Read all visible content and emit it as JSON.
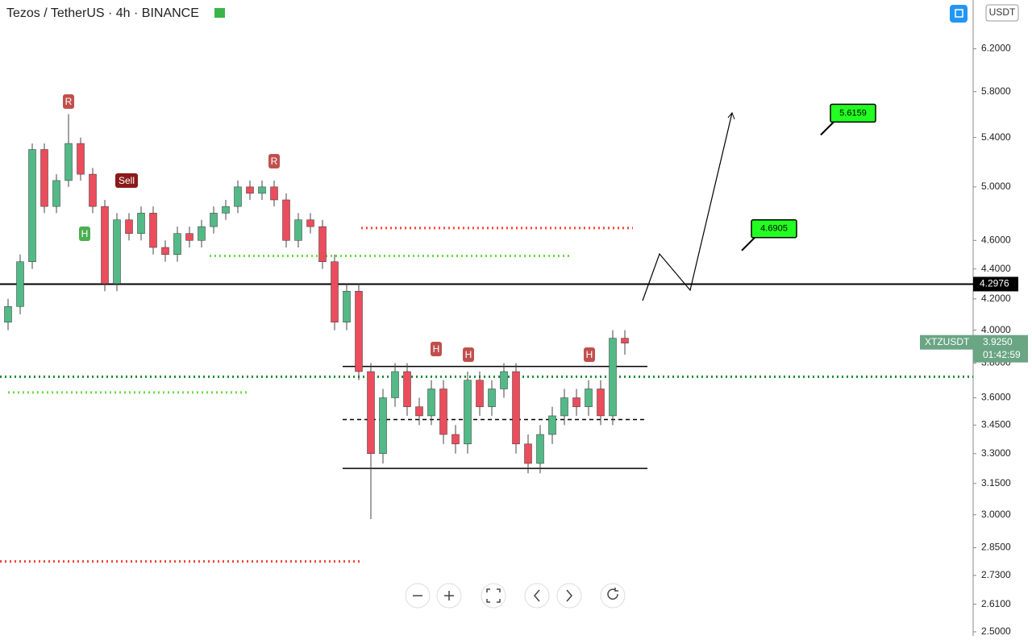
{
  "header": {
    "symbol": "Tezos / TetherUS · 4h · BINANCE",
    "currency": "USDT"
  },
  "chart_data": {
    "type": "candlestick",
    "log_scale": true,
    "ylim": [
      2.484,
      6.69
    ],
    "yticks": [
      {
        "value": 6.2,
        "label": "6.2000"
      },
      {
        "value": 5.8,
        "label": "5.8000"
      },
      {
        "value": 5.4,
        "label": "5.4000"
      },
      {
        "value": 5,
        "label": "5.0000"
      },
      {
        "value": 4.6,
        "label": "4.6000"
      },
      {
        "value": 4.4,
        "label": "4.4000"
      },
      {
        "value": 4.2,
        "label": "4.2000"
      },
      {
        "value": 4,
        "label": "4.0000"
      },
      {
        "value": 3.8,
        "label": "3.8000"
      },
      {
        "value": 3.6,
        "label": "3.6000"
      },
      {
        "value": 3.45,
        "label": "3.4500"
      },
      {
        "value": 3.3,
        "label": "3.3000"
      },
      {
        "value": 3.15,
        "label": "3.1500"
      },
      {
        "value": 3,
        "label": "3.0000"
      },
      {
        "value": 2.85,
        "label": "2.8500"
      },
      {
        "value": 2.73,
        "label": "2.7300"
      },
      {
        "value": 2.61,
        "label": "2.6100"
      },
      {
        "value": 2.5,
        "label": "2.5000"
      }
    ],
    "up_color": "#53b987",
    "down_color": "#eb4d5c",
    "open": [
      4.05,
      4.15,
      4.45,
      5.3,
      4.85,
      5.05,
      5.35,
      5.1,
      4.85,
      4.3,
      4.75,
      4.65,
      4.8,
      4.55,
      4.5,
      4.65,
      4.6,
      4.7,
      4.8,
      4.85,
      5.0,
      4.95,
      5.0,
      4.9,
      4.6,
      4.75,
      4.7,
      4.45,
      4.05,
      4.25,
      3.75,
      3.3,
      3.6,
      3.75,
      3.55,
      3.5,
      3.65,
      3.4,
      3.35,
      3.7,
      3.55,
      3.65,
      3.75,
      3.35,
      3.25,
      3.4,
      3.5,
      3.6,
      3.55,
      3.65,
      3.5,
      3.95
    ],
    "high": [
      4.2,
      4.5,
      5.35,
      5.35,
      5.1,
      5.6,
      5.4,
      5.15,
      4.9,
      4.8,
      4.8,
      4.85,
      4.85,
      4.6,
      4.7,
      4.7,
      4.75,
      4.85,
      4.9,
      5.05,
      5.05,
      5.05,
      5.05,
      4.95,
      4.8,
      4.8,
      4.75,
      4.5,
      4.3,
      4.3,
      3.8,
      3.65,
      3.8,
      3.8,
      3.6,
      3.7,
      3.7,
      3.45,
      3.75,
      3.75,
      3.7,
      3.8,
      3.8,
      3.4,
      3.45,
      3.55,
      3.65,
      3.65,
      3.7,
      3.7,
      4.0,
      4.0
    ],
    "low": [
      4.0,
      4.1,
      4.4,
      4.8,
      4.8,
      5.0,
      5.05,
      4.8,
      4.25,
      4.25,
      4.6,
      4.6,
      4.5,
      4.45,
      4.45,
      4.55,
      4.55,
      4.65,
      4.75,
      4.8,
      4.9,
      4.9,
      4.85,
      4.55,
      4.55,
      4.65,
      4.4,
      4.0,
      4.0,
      3.7,
      2.98,
      3.25,
      3.55,
      3.5,
      3.45,
      3.45,
      3.35,
      3.3,
      3.3,
      3.5,
      3.5,
      3.6,
      3.3,
      3.2,
      3.2,
      3.35,
      3.45,
      3.5,
      3.5,
      3.45,
      3.45,
      3.85
    ],
    "close": [
      4.15,
      4.45,
      5.3,
      4.85,
      5.05,
      5.35,
      5.1,
      4.85,
      4.3,
      4.75,
      4.65,
      4.8,
      4.55,
      4.5,
      4.65,
      4.6,
      4.7,
      4.8,
      4.85,
      5.0,
      4.95,
      5.0,
      4.9,
      4.6,
      4.75,
      4.7,
      4.45,
      4.05,
      4.25,
      3.75,
      3.3,
      3.6,
      3.75,
      3.55,
      3.5,
      3.65,
      3.4,
      3.35,
      3.7,
      3.55,
      3.65,
      3.75,
      3.35,
      3.25,
      3.4,
      3.5,
      3.6,
      3.55,
      3.65,
      3.5,
      3.95,
      3.92
    ],
    "levels": [
      {
        "value": 4.2976,
        "color": "#000000",
        "style": "solid"
      },
      {
        "value": 3.78,
        "color": "#000000",
        "style": "solid"
      },
      {
        "value": 3.225,
        "color": "#000000",
        "style": "solid"
      },
      {
        "value": 3.72,
        "color": "#1b8a2e",
        "style": "dotted"
      },
      {
        "value": 4.69,
        "color": "#f44336",
        "style": "dotted"
      },
      {
        "value": 4.49,
        "color": "#66dd44",
        "style": "dotted"
      },
      {
        "value": 3.63,
        "color": "#66dd44",
        "style": "dotted"
      },
      {
        "value": 2.79,
        "color": "#f44336",
        "style": "dotted"
      },
      {
        "value": 3.48,
        "color": "#000000",
        "style": "dashed"
      }
    ],
    "price_line": {
      "value": 4.2976
    },
    "last_price": {
      "symbol": "XTZUSDT",
      "price": {
        "value": 3.925,
        "label": "3.9250"
      },
      "countdown": "01:42:59"
    },
    "targets": [
      5.6159,
      4.6905
    ],
    "annotations": [
      "Sell",
      "R",
      "R",
      "H",
      "H",
      "H",
      "H"
    ]
  }
}
